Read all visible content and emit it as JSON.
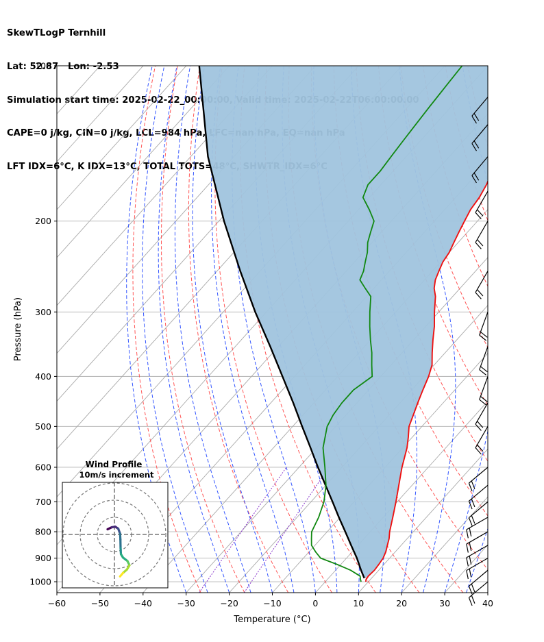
{
  "header": {
    "line1": "SkewTLogP Ternhill",
    "line2": "Lat: 52.87   Lon: -2.53",
    "line3": "Simulation start time: 2025-02-22_00:00:00, Valid time: 2025-02-22T06:00:00.00",
    "line4": "CAPE=0 j/kg, CIN=0 j/kg, LCL=984 hPa, LFC=nan hPa, EQ=nan hPa",
    "line5": "LFT IDX=6°C, K IDX=13°C, TOTAL TOTS=48°C, SHWTR_IDX=6°C"
  },
  "chart_data": [
    {
      "type": "line",
      "title": "",
      "xlabel": "Temperature (°C)",
      "ylabel": "Pressure (hPa)",
      "xlim": [
        -60,
        40
      ],
      "ylim": [
        1050,
        100
      ],
      "y_scale": "log",
      "grid": true,
      "x_ticks": [
        "−60",
        "−50",
        "−40",
        "−30",
        "−20",
        "−10",
        "0",
        "10",
        "20",
        "30",
        "40"
      ],
      "y_ticks": [
        "100",
        "200",
        "300",
        "400",
        "500",
        "600",
        "700",
        "800",
        "900",
        "1000"
      ],
      "colors": {
        "temperature": "#ee1111",
        "dewpoint": "#118811",
        "parcel": "#000000",
        "cin_fill": "#a0c4de",
        "isotherm": "#a9a9a9",
        "dry_adiabat": "#ff5555",
        "moist_adiabat": "#3355ff",
        "mixing_ratio": "#8833cc"
      },
      "series": [
        {
          "role": "temperature",
          "points": [
            [
              1000,
              9.4
            ],
            [
              990,
              9.0
            ],
            [
              975,
              8.8
            ],
            [
              950,
              9.0
            ],
            [
              925,
              8.8
            ],
            [
              900,
              8.5
            ],
            [
              875,
              7.8
            ],
            [
              850,
              6.8
            ],
            [
              825,
              5.8
            ],
            [
              800,
              4.5
            ],
            [
              750,
              2.2
            ],
            [
              700,
              -0.3
            ],
            [
              650,
              -3.1
            ],
            [
              600,
              -6.1
            ],
            [
              550,
              -9.0
            ],
            [
              525,
              -10.9
            ],
            [
              500,
              -13.0
            ],
            [
              475,
              -14.4
            ],
            [
              450,
              -15.9
            ],
            [
              425,
              -17.4
            ],
            [
              400,
              -18.9
            ],
            [
              380,
              -20.5
            ],
            [
              360,
              -23.0
            ],
            [
              340,
              -25.5
            ],
            [
              320,
              -28.0
            ],
            [
              300,
              -31.0
            ],
            [
              280,
              -34.0
            ],
            [
              270,
              -36.0
            ],
            [
              260,
              -37.5
            ],
            [
              250,
              -38.5
            ],
            [
              240,
              -39.5
            ],
            [
              230,
              -40.0
            ],
            [
              220,
              -41.0
            ],
            [
              210,
              -42.0
            ],
            [
              200,
              -43.0
            ],
            [
              190,
              -44.0
            ],
            [
              180,
              -44.5
            ],
            [
              170,
              -45.5
            ],
            [
              160,
              -47.0
            ],
            [
              150,
              -48.5
            ],
            [
              140,
              -49.0
            ],
            [
              130,
              -49.5
            ],
            [
              120,
              -49.5
            ],
            [
              110,
              -50.0
            ],
            [
              100,
              -50.5
            ]
          ]
        },
        {
          "role": "dewpoint",
          "points": [
            [
              1000,
              8.3
            ],
            [
              990,
              7.7
            ],
            [
              975,
              6.9
            ],
            [
              950,
              3.5
            ],
            [
              925,
              -1.0
            ],
            [
              900,
              -6.0
            ],
            [
              875,
              -8.5
            ],
            [
              850,
              -10.8
            ],
            [
              825,
              -12.2
            ],
            [
              800,
              -13.6
            ],
            [
              750,
              -15.0
            ],
            [
              700,
              -17.0
            ],
            [
              650,
              -20.0
            ],
            [
              600,
              -24.0
            ],
            [
              550,
              -28.5
            ],
            [
              500,
              -32.0
            ],
            [
              475,
              -33.0
            ],
            [
              450,
              -33.5
            ],
            [
              425,
              -33.5
            ],
            [
              400,
              -32.0
            ],
            [
              380,
              -34.5
            ],
            [
              360,
              -37.0
            ],
            [
              340,
              -40.0
            ],
            [
              320,
              -43.0
            ],
            [
              300,
              -46.0
            ],
            [
              280,
              -49.0
            ],
            [
              270,
              -52.0
            ],
            [
              260,
              -55.0
            ],
            [
              250,
              -56.0
            ],
            [
              240,
              -57.5
            ],
            [
              230,
              -59.0
            ],
            [
              220,
              -61.0
            ],
            [
              210,
              -62.5
            ],
            [
              200,
              -64.0
            ],
            [
              190,
              -67.5
            ],
            [
              180,
              -71.5
            ],
            [
              170,
              -73.0
            ],
            [
              160,
              -73.0
            ],
            [
              150,
              -73.5
            ],
            [
              140,
              -74.0
            ],
            [
              130,
              -74.5
            ],
            [
              120,
              -75.0
            ],
            [
              110,
              -75.5
            ],
            [
              100,
              -76.0
            ]
          ]
        },
        {
          "role": "parcel",
          "points": [
            [
              984,
              8.3
            ],
            [
              950,
              5.9
            ],
            [
              900,
              2.4
            ],
            [
              850,
              -1.6
            ],
            [
              800,
              -5.8
            ],
            [
              750,
              -10.3
            ],
            [
              700,
              -15.0
            ],
            [
              650,
              -20.1
            ],
            [
              600,
              -25.6
            ],
            [
              550,
              -31.4
            ],
            [
              500,
              -37.8
            ],
            [
              450,
              -44.8
            ],
            [
              400,
              -52.8
            ],
            [
              350,
              -61.9
            ],
            [
              300,
              -72.6
            ],
            [
              250,
              -84.6
            ],
            [
              200,
              -98.8
            ],
            [
              150,
              -116.0
            ],
            [
              100,
              -137.0
            ]
          ]
        }
      ],
      "wind_barbs": [
        {
          "p": 1000,
          "dir": 230,
          "kt": 20
        },
        {
          "p": 950,
          "dir": 230,
          "kt": 20
        },
        {
          "p": 900,
          "dir": 240,
          "kt": 20
        },
        {
          "p": 850,
          "dir": 240,
          "kt": 20
        },
        {
          "p": 800,
          "dir": 240,
          "kt": 20
        },
        {
          "p": 750,
          "dir": 240,
          "kt": 20
        },
        {
          "p": 700,
          "dir": 230,
          "kt": 20
        },
        {
          "p": 650,
          "dir": 230,
          "kt": 20
        },
        {
          "p": 600,
          "dir": 230,
          "kt": 20
        },
        {
          "p": 500,
          "dir": 210,
          "kt": 20
        },
        {
          "p": 450,
          "dir": 210,
          "kt": 20
        },
        {
          "p": 400,
          "dir": 200,
          "kt": 20
        },
        {
          "p": 350,
          "dir": 200,
          "kt": 20
        },
        {
          "p": 300,
          "dir": 200,
          "kt": 20
        },
        {
          "p": 250,
          "dir": 210,
          "kt": 20
        },
        {
          "p": 200,
          "dir": 210,
          "kt": 20
        },
        {
          "p": 175,
          "dir": 210,
          "kt": 20
        },
        {
          "p": 150,
          "dir": 220,
          "kt": 20
        },
        {
          "p": 130,
          "dir": 220,
          "kt": 20
        },
        {
          "p": 115,
          "dir": 220,
          "kt": 20
        }
      ]
    },
    {
      "type": "line",
      "title": "Wind Profile",
      "subtitle": "10m/s increment",
      "rings": [
        10,
        20,
        30
      ],
      "colormap": "viridis",
      "points": [
        [
          -4.0,
          3.0
        ],
        [
          -1.5,
          4.2
        ],
        [
          0.5,
          4.5
        ],
        [
          2.2,
          3.4
        ],
        [
          3.3,
          0.5
        ],
        [
          3.5,
          -3.0
        ],
        [
          3.6,
          -8.0
        ],
        [
          3.8,
          -11.5
        ],
        [
          5.0,
          -13.5
        ],
        [
          7.6,
          -15.5
        ],
        [
          8.8,
          -18.0
        ],
        [
          7.3,
          -20.5
        ],
        [
          5.0,
          -22.5
        ],
        [
          3.3,
          -24.5
        ]
      ]
    }
  ]
}
